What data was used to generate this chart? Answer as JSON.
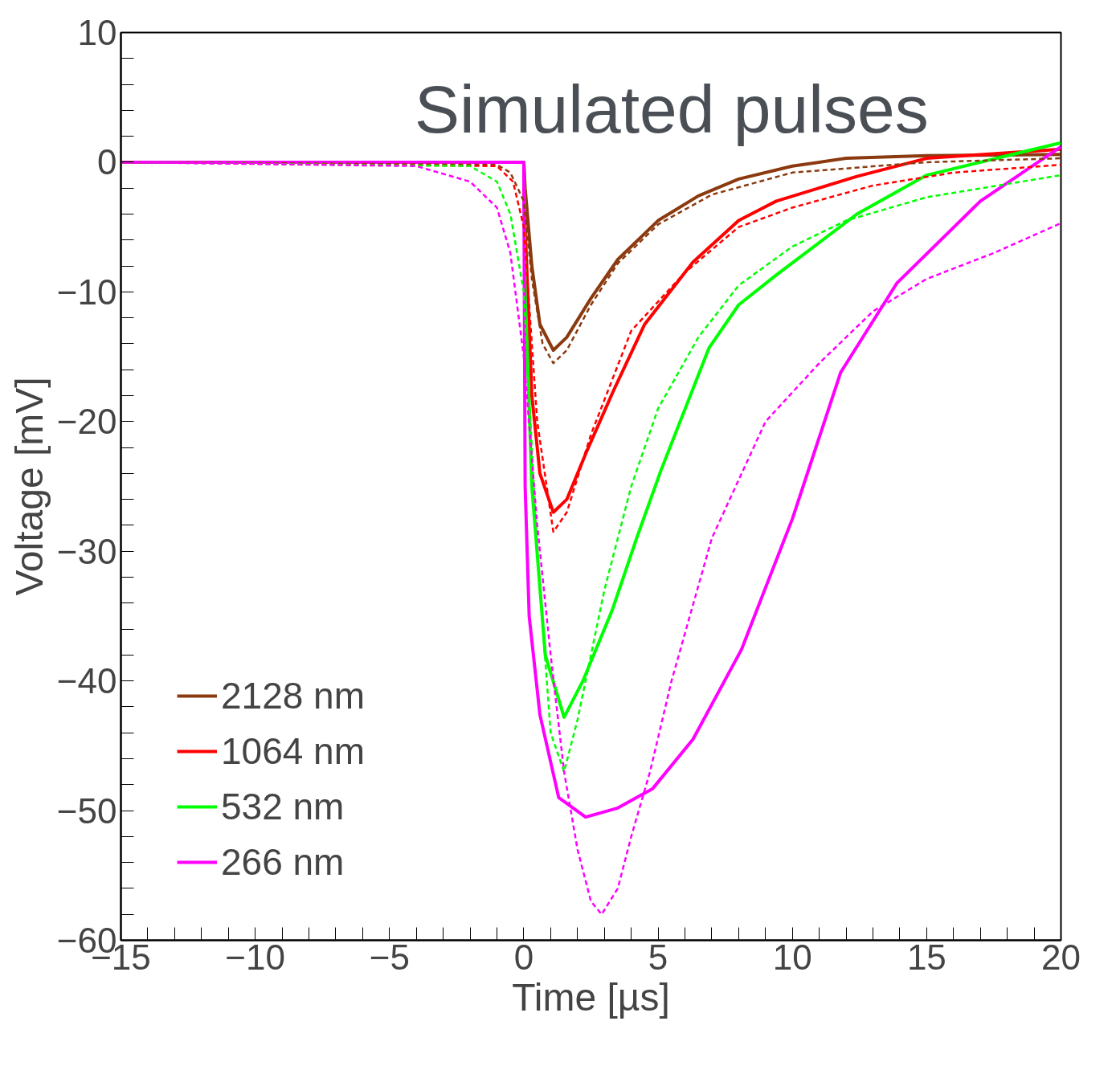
{
  "chart_data": {
    "type": "line",
    "title": "Simulated pulses",
    "xlabel": "Time [µs]",
    "ylabel": "Voltage [mV]",
    "xlim": [
      -15,
      20
    ],
    "ylim": [
      -60,
      10
    ],
    "xticks": [
      {
        "value": -15,
        "label": "−15"
      },
      {
        "value": -10,
        "label": "−10"
      },
      {
        "value": -5,
        "label": "−5"
      },
      0,
      5,
      10,
      15,
      20,
      {
        "value": -14,
        "label": null
      },
      {
        "value": -13,
        "label": null
      },
      {
        "value": -12,
        "label": null
      },
      {
        "value": -11,
        "label": null
      },
      {
        "value": -9,
        "label": null
      },
      {
        "value": -8,
        "label": null
      },
      {
        "value": -7,
        "label": null
      },
      {
        "value": -6,
        "label": null
      },
      {
        "value": -4,
        "label": null
      },
      {
        "value": -3,
        "label": null
      },
      {
        "value": -2,
        "label": null
      },
      {
        "value": -1,
        "label": null
      },
      {
        "value": 1,
        "label": null
      },
      {
        "value": 2,
        "label": null
      },
      {
        "value": 3,
        "label": null
      },
      {
        "value": 4,
        "label": null
      },
      {
        "value": 6,
        "label": null
      },
      {
        "value": 7,
        "label": null
      },
      {
        "value": 8,
        "label": null
      },
      {
        "value": 9,
        "label": null
      },
      {
        "value": 11,
        "label": null
      },
      {
        "value": 12,
        "label": null
      },
      {
        "value": 13,
        "label": null
      },
      {
        "value": 14,
        "label": null
      },
      {
        "value": 16,
        "label": null
      },
      {
        "value": 17,
        "label": null
      },
      {
        "value": 18,
        "label": null
      },
      {
        "value": 19,
        "label": null
      }
    ],
    "yticks": [
      {
        "value": -60,
        "label": "−60"
      },
      {
        "value": -50,
        "label": "−50"
      },
      {
        "value": -40,
        "label": "−40"
      },
      {
        "value": -30,
        "label": "−30"
      },
      {
        "value": -20,
        "label": "−20"
      },
      {
        "value": -10,
        "label": "−10"
      },
      0,
      10,
      {
        "value": -58,
        "label": null
      },
      {
        "value": -56,
        "label": null
      },
      {
        "value": -54,
        "label": null
      },
      {
        "value": -52,
        "label": null
      },
      {
        "value": -48,
        "label": null
      },
      {
        "value": -46,
        "label": null
      },
      {
        "value": -44,
        "label": null
      },
      {
        "value": -42,
        "label": null
      },
      {
        "value": -38,
        "label": null
      },
      {
        "value": -36,
        "label": null
      },
      {
        "value": -34,
        "label": null
      },
      {
        "value": -32,
        "label": null
      },
      {
        "value": -28,
        "label": null
      },
      {
        "value": -26,
        "label": null
      },
      {
        "value": -24,
        "label": null
      },
      {
        "value": -22,
        "label": null
      },
      {
        "value": -18,
        "label": null
      },
      {
        "value": -16,
        "label": null
      },
      {
        "value": -14,
        "label": null
      },
      {
        "value": -12,
        "label": null
      },
      {
        "value": -8,
        "label": null
      },
      {
        "value": -6,
        "label": null
      },
      {
        "value": -4,
        "label": null
      },
      {
        "value": -2,
        "label": null
      },
      {
        "value": 2,
        "label": null
      },
      {
        "value": 4,
        "label": null
      },
      {
        "value": 6,
        "label": null
      },
      {
        "value": 8,
        "label": null
      }
    ],
    "grid": false,
    "legend": "bottom left",
    "marker": "none",
    "series": [
      {
        "name": "2128 nm",
        "color": "#8b3a0f",
        "line_style": "solid",
        "x": [
          -15,
          0,
          0.05,
          0.3,
          0.6,
          1.1,
          1.6,
          2.5,
          3.5,
          5,
          6.5,
          8,
          10,
          12,
          15,
          20
        ],
        "values": [
          0,
          0,
          -2,
          -8,
          -12.5,
          -14.5,
          -13.5,
          -10.5,
          -7.5,
          -4.5,
          -2.6,
          -1.3,
          -0.3,
          0.3,
          0.5,
          0.6
        ]
      },
      {
        "name": "1064 nm",
        "color": "#ff0000",
        "line_style": "solid",
        "x": [
          -15,
          0,
          0.05,
          0.3,
          0.6,
          1.1,
          1.6,
          2.3,
          3.3,
          4.5,
          6.3,
          8,
          9.4,
          12.4,
          15,
          20
        ],
        "values": [
          0,
          0,
          -5,
          -18,
          -24,
          -27,
          -26,
          -22.5,
          -17.8,
          -12.5,
          -7.7,
          -4.5,
          -3,
          -1.1,
          0.3,
          1
        ]
      },
      {
        "name": "532 nm",
        "color": "#00ff00",
        "line_style": "solid",
        "x": [
          -15,
          0,
          0.05,
          0.3,
          0.8,
          1.5,
          2.2,
          3.3,
          4.2,
          5.1,
          6.9,
          8,
          9.4,
          12.4,
          15,
          20
        ],
        "values": [
          0,
          0,
          -10,
          -25,
          -38,
          -42.8,
          -40,
          -34.5,
          -29,
          -23.8,
          -14.3,
          -11,
          -8.7,
          -4,
          -1,
          1.5
        ]
      },
      {
        "name": "266 nm",
        "color": "#ff00ff",
        "line_style": "solid",
        "x": [
          -15,
          0,
          0.05,
          0.2,
          0.6,
          1.3,
          2.3,
          3.5,
          4.8,
          6.3,
          8.1,
          10,
          11.8,
          13.9,
          17,
          20
        ],
        "values": [
          0,
          0,
          -25,
          -35,
          -42.6,
          -49,
          -50.5,
          -49.8,
          -48.3,
          -44.5,
          -37.6,
          -27.5,
          -16.2,
          -9.3,
          -3,
          1.2
        ]
      },
      {
        "color": "#8b3a0f",
        "line_style": "dashed",
        "x": [
          -15,
          -1,
          -0.5,
          0,
          0.3,
          0.7,
          1.1,
          1.6,
          2.5,
          3.5,
          5,
          7,
          10,
          15,
          20
        ],
        "values": [
          0,
          -0.2,
          -0.8,
          -3,
          -9,
          -14,
          -15.5,
          -14.5,
          -11,
          -7.8,
          -4.8,
          -2.5,
          -0.8,
          0,
          0.3
        ]
      },
      {
        "color": "#ff0000",
        "line_style": "dashed",
        "x": [
          -15,
          -1,
          -0.4,
          0,
          0.5,
          1.1,
          1.6,
          2.5,
          4,
          6,
          8,
          10,
          13,
          16,
          20
        ],
        "values": [
          0,
          -0.3,
          -1.5,
          -5,
          -20,
          -28.5,
          -27,
          -21,
          -13,
          -8.5,
          -5,
          -3.5,
          -1.8,
          -0.8,
          -0.2
        ]
      },
      {
        "color": "#00ff00",
        "line_style": "dashed",
        "x": [
          -15,
          -2,
          -1,
          -0.5,
          0,
          0.5,
          1,
          1.5,
          2,
          3,
          4,
          5,
          6.5,
          8,
          10,
          12,
          15,
          20
        ],
        "values": [
          0,
          -0.3,
          -1.5,
          -4,
          -10,
          -30,
          -44,
          -47,
          -43,
          -33,
          -25,
          -19,
          -13.5,
          -9.5,
          -6.5,
          -4.5,
          -2.7,
          -1
        ]
      },
      {
        "color": "#ff00ff",
        "line_style": "dashed",
        "x": [
          -15,
          -4,
          -2,
          -1,
          -0.5,
          0,
          0.5,
          1,
          1.5,
          2,
          2.5,
          2.9,
          3.5,
          4,
          4.7,
          5.5,
          7,
          9,
          11,
          13,
          15,
          17.5,
          20
        ],
        "values": [
          0,
          -0.3,
          -1.5,
          -3.5,
          -7,
          -15,
          -28,
          -38,
          -47,
          -53,
          -57,
          -58,
          -56,
          -52,
          -47,
          -40,
          -29,
          -20,
          -15.5,
          -11.5,
          -9,
          -7,
          -4.7
        ]
      }
    ]
  }
}
